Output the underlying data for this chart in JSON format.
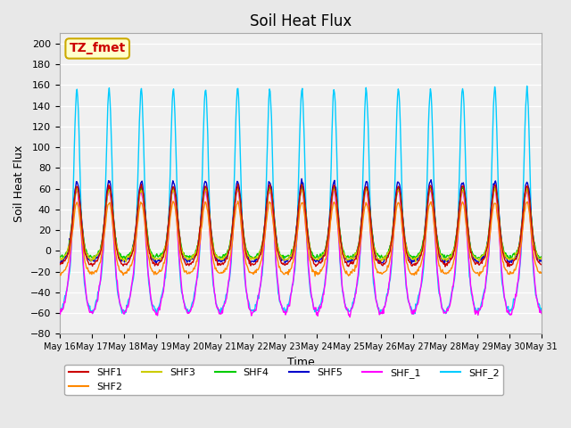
{
  "title": "Soil Heat Flux",
  "xlabel": "Time",
  "ylabel": "Soil Heat Flux",
  "ylim": [
    -80,
    210
  ],
  "yticks": [
    -80,
    -60,
    -40,
    -20,
    0,
    20,
    40,
    60,
    80,
    100,
    120,
    140,
    160,
    180,
    200
  ],
  "xtick_labels": [
    "May 16",
    "May 17",
    "May 18",
    "May 19",
    "May 20",
    "May 21",
    "May 22",
    "May 23",
    "May 24",
    "May 25",
    "May 26",
    "May 27",
    "May 28",
    "May 29",
    "May 30",
    "May 31"
  ],
  "series_colors": {
    "SHF1": "#cc0000",
    "SHF2": "#ff8800",
    "SHF3": "#cccc00",
    "SHF4": "#00cc00",
    "SHF5": "#0000cc",
    "SHF_1": "#ff00ff",
    "SHF_2": "#00ccff"
  },
  "annotation_text": "TZ_fmet",
  "annotation_bg": "#ffffcc",
  "annotation_border": "#ccaa00",
  "annotation_color": "#cc0000",
  "background_color": "#e8e8e8",
  "plot_bg": "#f0f0f0",
  "grid_color": "#ffffff",
  "n_days": 15,
  "points_per_day": 48
}
